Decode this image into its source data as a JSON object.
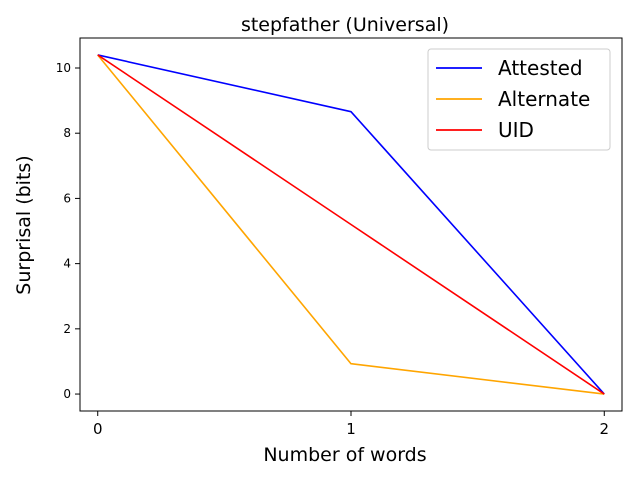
{
  "chart_data": {
    "type": "line",
    "title": "stepfather (Universal)",
    "xlabel": "Number of words",
    "ylabel": "Surprisal (bits)",
    "x": [
      0,
      1,
      2
    ],
    "x_ticks": [
      "0",
      "1",
      "2"
    ],
    "y_ticks": [
      "0",
      "2",
      "4",
      "6",
      "8",
      "10"
    ],
    "xlim": [
      -0.07,
      2.07
    ],
    "ylim": [
      -0.52,
      10.92
    ],
    "grid": false,
    "legend_position": "top-right",
    "series": [
      {
        "name": "Attested",
        "color": "#0000ff",
        "values": [
          10.4,
          8.66,
          0.0
        ]
      },
      {
        "name": "Alternate",
        "color": "#ffa500",
        "values": [
          10.4,
          0.93,
          0.0
        ]
      },
      {
        "name": "UID",
        "color": "#ff0000",
        "values": [
          10.4,
          5.2,
          0.0
        ]
      }
    ]
  }
}
